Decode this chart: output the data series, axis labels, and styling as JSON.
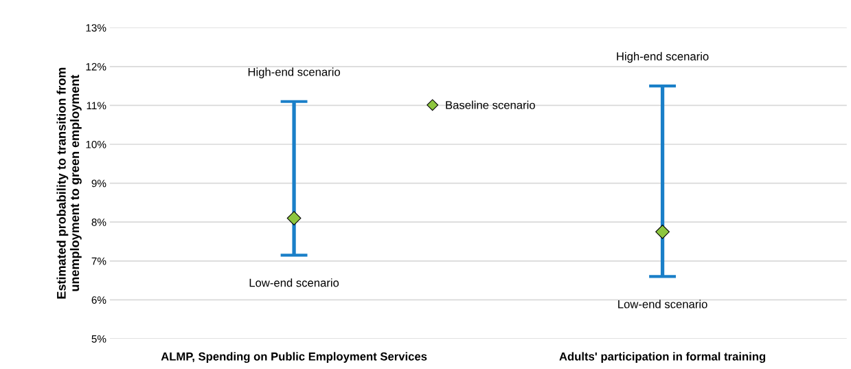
{
  "chart_data": {
    "type": "scatter",
    "ylabel": "Estimated probability to transition from\nunemployment to green employment",
    "categories": [
      "ALMP, Spending on Public Employment Services",
      "Adults' participation in formal training"
    ],
    "series": [
      {
        "name": "Baseline scenario",
        "marker": "diamond",
        "color": "#8dc63f",
        "values": [
          8.1,
          7.75
        ],
        "errors": [
          [
            7.15,
            11.1
          ],
          [
            6.6,
            11.5
          ]
        ]
      }
    ],
    "ylim": [
      5,
      13
    ],
    "yticks": [
      {
        "value": 5,
        "label": "5%"
      },
      {
        "value": 6,
        "label": "6%"
      },
      {
        "value": 7,
        "label": "7%"
      },
      {
        "value": 8,
        "label": "8%"
      },
      {
        "value": 9,
        "label": "9%"
      },
      {
        "value": 10,
        "label": "10%"
      },
      {
        "value": 11,
        "label": "11%"
      },
      {
        "value": 12,
        "label": "12%"
      },
      {
        "value": 13,
        "label": "13%"
      }
    ],
    "grid": "y",
    "legend": "top",
    "annotations": [
      "High-end scenario",
      "Low-end scenario",
      "High-end scenario",
      "Low-end scenario"
    ]
  }
}
